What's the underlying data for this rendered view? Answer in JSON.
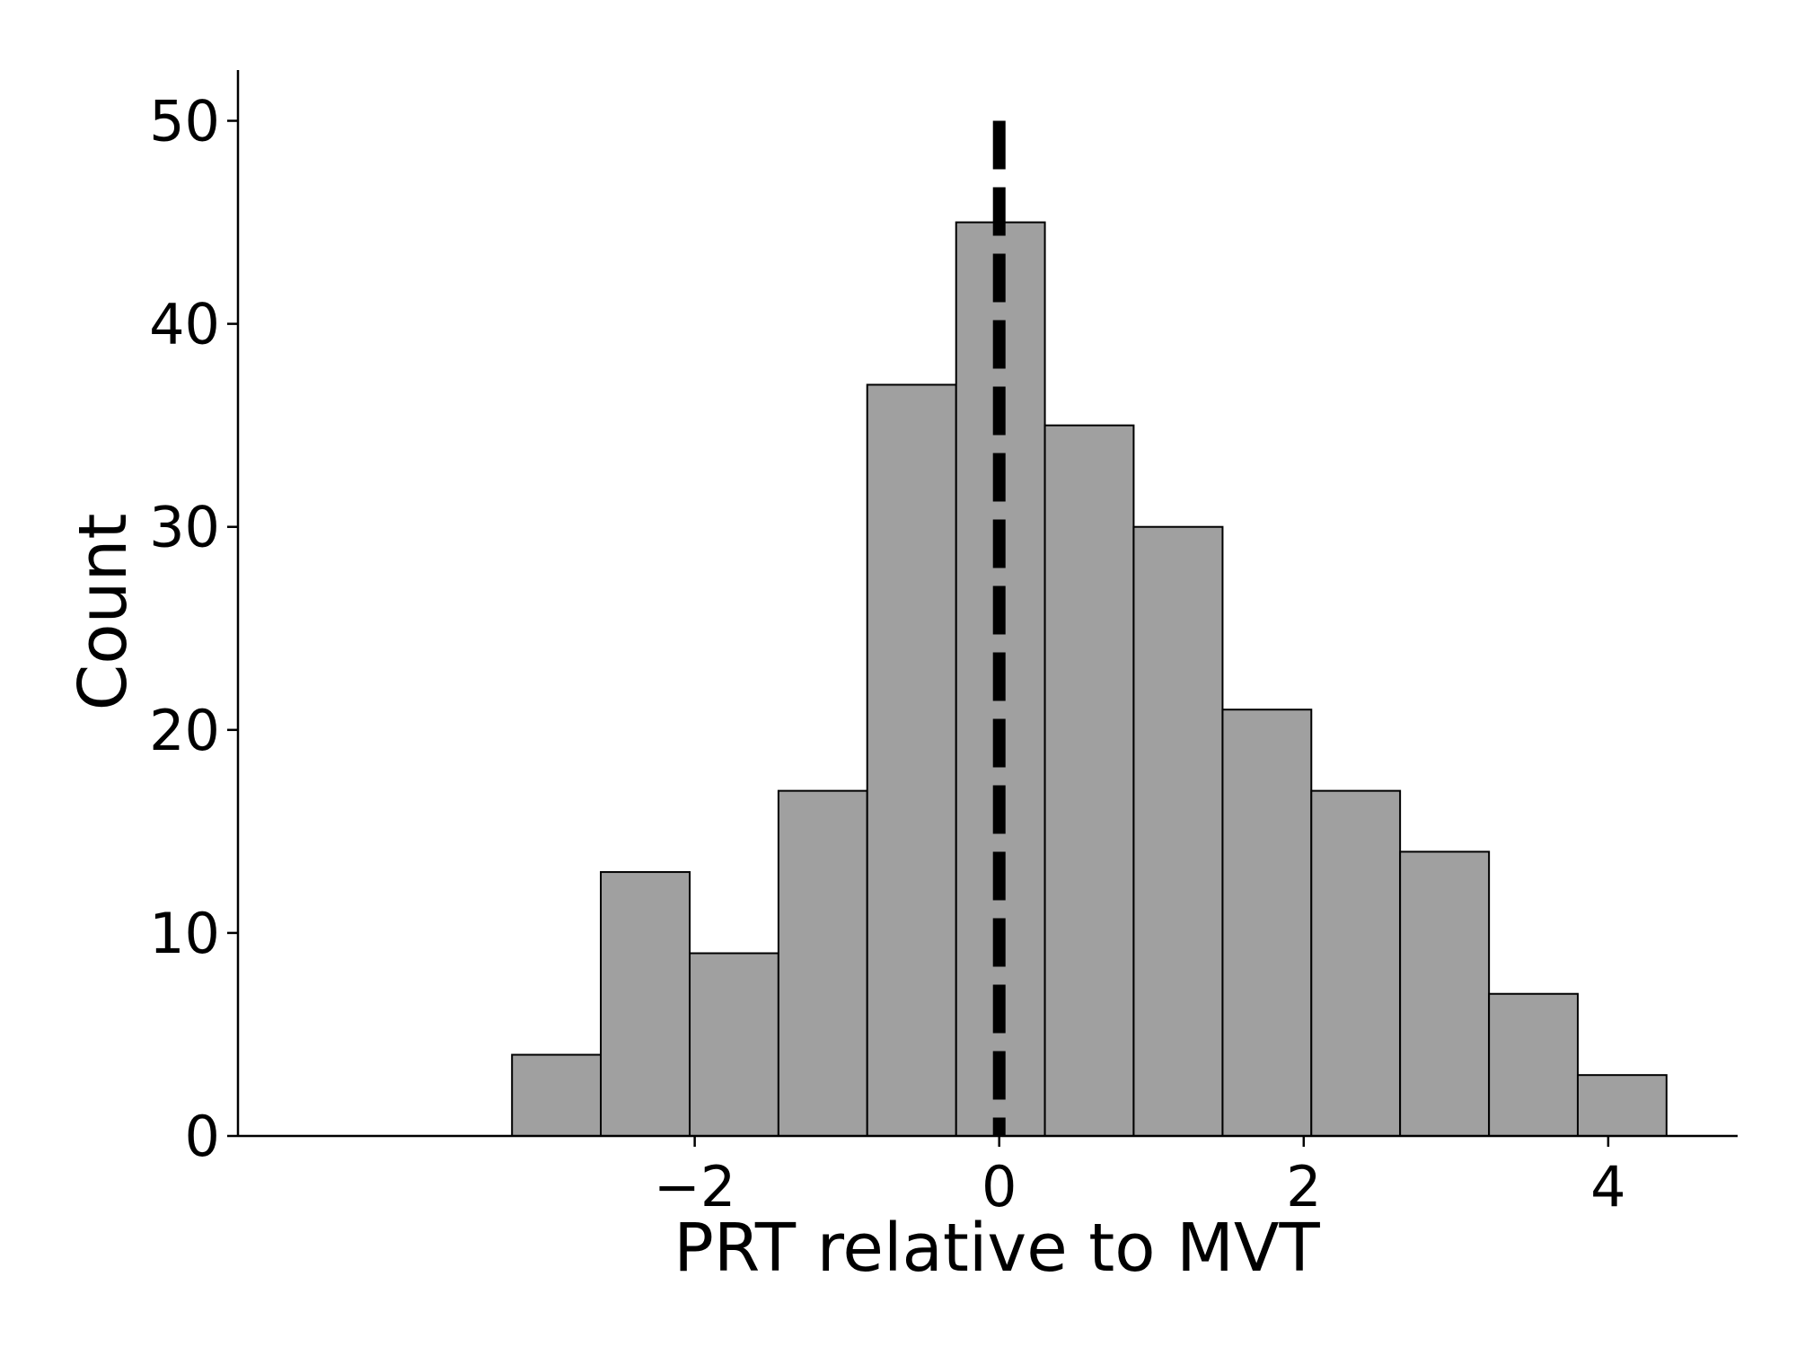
{
  "chart_data": {
    "type": "bar",
    "subtype": "histogram",
    "title": "",
    "xlabel": "PRT relative to MVT",
    "ylabel": "Count",
    "bin_edges": [
      -3.2,
      -2.617,
      -2.033,
      -1.45,
      -0.867,
      -0.283,
      0.3,
      0.883,
      1.467,
      2.05,
      2.633,
      3.217,
      3.8,
      4.383
    ],
    "values": [
      4,
      13,
      9,
      17,
      37,
      45,
      35,
      30,
      21,
      17,
      14,
      7,
      3
    ],
    "xlim": [
      -5.0,
      4.85
    ],
    "ylim": [
      0,
      52.5
    ],
    "xticks": [
      -2,
      0,
      2,
      4
    ],
    "xtick_labels": [
      "−2",
      "0",
      "2",
      "4"
    ],
    "yticks": [
      0,
      10,
      20,
      30,
      40,
      50
    ],
    "ytick_labels": [
      "0",
      "10",
      "20",
      "30",
      "40",
      "50"
    ],
    "reference_line": {
      "x": 0,
      "y_range": [
        0,
        50
      ],
      "style": "dashed",
      "color": "#000000"
    },
    "bar_color": "#a0a0a0",
    "edge_color": "#000000",
    "grid": false,
    "legend": "none"
  }
}
